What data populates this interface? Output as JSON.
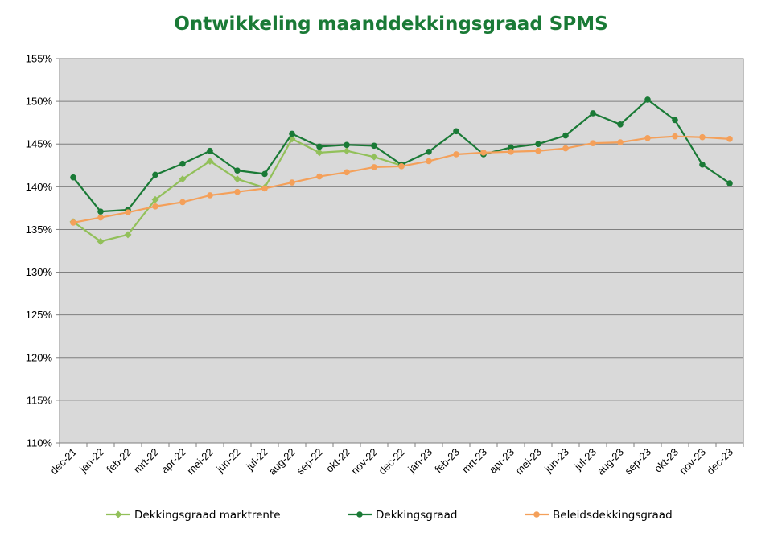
{
  "chart_data": {
    "type": "line",
    "title": "Ontwikkeling maanddekkingsgraad SPMS",
    "xlabel": "",
    "ylabel": "",
    "ylim": [
      110,
      155
    ],
    "y_ticks": [
      "110%",
      "115%",
      "120%",
      "125%",
      "130%",
      "135%",
      "140%",
      "145%",
      "150%",
      "155%"
    ],
    "categories": [
      "dec-21",
      "jan-22",
      "feb-22",
      "mrt-22",
      "apr-22",
      "mei-22",
      "jun-22",
      "jul-22",
      "aug-22",
      "sep-22",
      "okt-22",
      "nov-22",
      "dec-22",
      "jan-23",
      "feb-23",
      "mrt-23",
      "apr-23",
      "mei-23",
      "jun-23",
      "jul-23",
      "aug-23",
      "sep-23",
      "okt-23",
      "nov-23",
      "dec-23"
    ],
    "grid": true,
    "legend_position": "bottom",
    "series": [
      {
        "name": "Dekkingsgraad marktrente",
        "color": "#92c05a",
        "marker": "diamond",
        "values": [
          135.9,
          133.6,
          134.4,
          138.5,
          140.9,
          143.0,
          140.9,
          139.9,
          145.6,
          144.0,
          144.2,
          143.5,
          142.5,
          null,
          null,
          null,
          null,
          null,
          null,
          null,
          null,
          null,
          null,
          null,
          null
        ]
      },
      {
        "name": "Dekkingsgraad",
        "color": "#1a7a36",
        "marker": "circle",
        "values": [
          141.1,
          137.1,
          137.3,
          141.4,
          142.7,
          144.2,
          141.9,
          141.5,
          146.2,
          144.7,
          144.9,
          144.8,
          142.6,
          144.1,
          146.5,
          143.8,
          144.6,
          145.0,
          146.0,
          148.6,
          147.3,
          150.2,
          147.8,
          142.6,
          140.4
        ]
      },
      {
        "name": "Beleidsdekkingsgraad",
        "color": "#f4a05a",
        "marker": "circle",
        "values": [
          135.8,
          136.4,
          137.0,
          137.7,
          138.2,
          139.0,
          139.4,
          139.8,
          140.5,
          141.2,
          141.7,
          142.3,
          142.4,
          143.0,
          143.8,
          144.0,
          144.1,
          144.2,
          144.5,
          145.1,
          145.2,
          145.7,
          145.9,
          145.8,
          145.6
        ]
      }
    ]
  }
}
